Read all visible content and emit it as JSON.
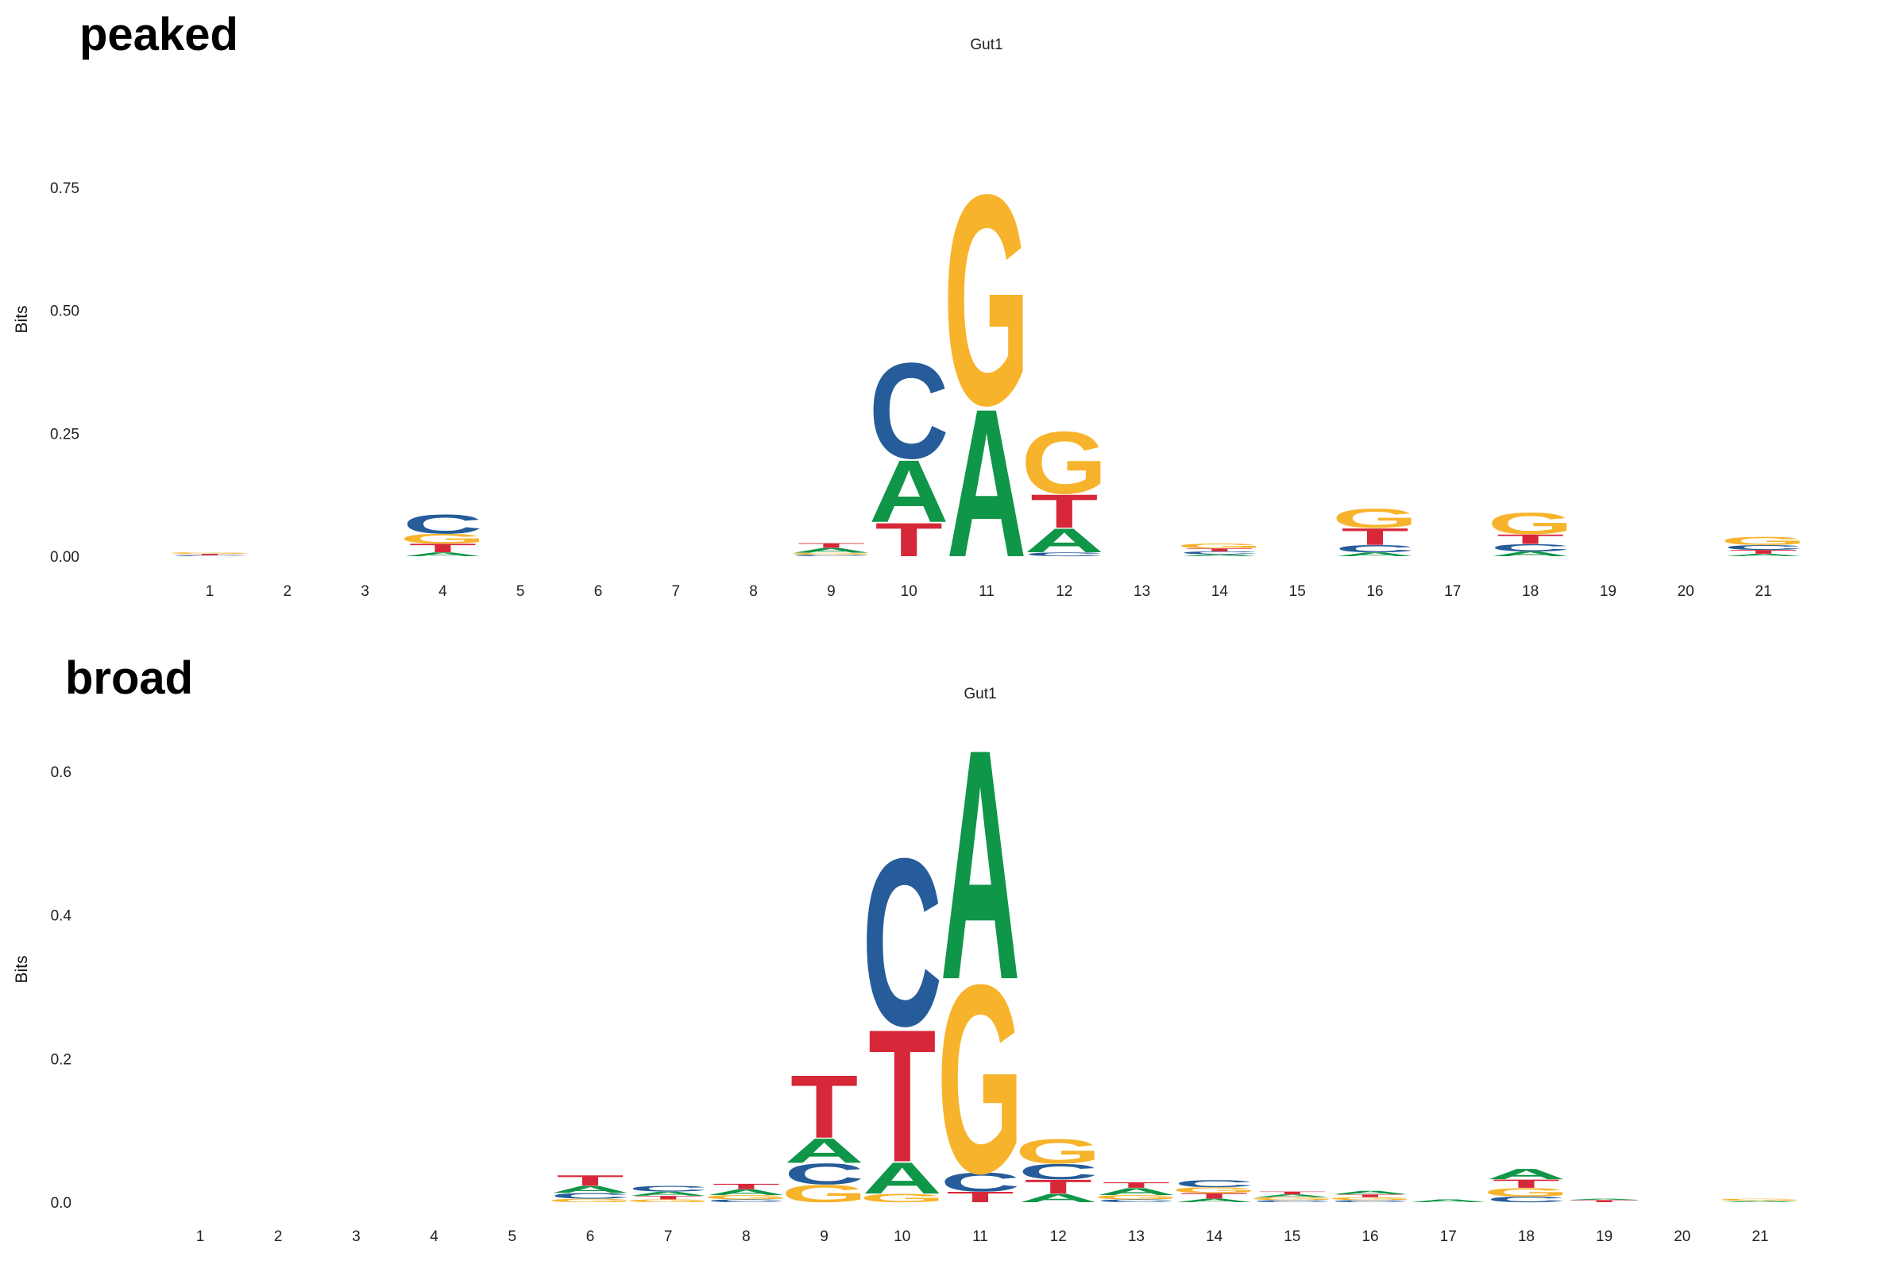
{
  "colors": {
    "A": "#109648",
    "C": "#255C99",
    "G": "#F7B32B",
    "T": "#D62839"
  },
  "panels": [
    {
      "label": "peaked"
    },
    {
      "label": "broad"
    }
  ],
  "chart_data": [
    {
      "type": "sequence-logo",
      "title": "Gut1",
      "ylabel": "Bits",
      "ylim": [
        0,
        0.75
      ],
      "yticks": [
        "0.00",
        "0.25",
        "0.50",
        "0.75"
      ],
      "ytick_values": [
        0,
        0.25,
        0.5,
        0.75
      ],
      "positions": [
        "1",
        "2",
        "3",
        "4",
        "5",
        "6",
        "7",
        "8",
        "9",
        "10",
        "11",
        "12",
        "13",
        "14",
        "15",
        "16",
        "17",
        "18",
        "19",
        "20",
        "21"
      ],
      "stacks": [
        [
          [
            "C",
            0.002
          ],
          [
            "T",
            0.003
          ],
          [
            "G",
            0.003
          ]
        ],
        [],
        [],
        [
          [
            "A",
            0.008
          ],
          [
            "T",
            0.018
          ],
          [
            "G",
            0.02
          ],
          [
            "C",
            0.04
          ]
        ],
        [],
        [],
        [],
        [],
        [
          [
            "C",
            0.003
          ],
          [
            "G",
            0.004
          ],
          [
            "A",
            0.01
          ],
          [
            "T",
            0.01
          ]
        ],
        [
          [
            "T",
            0.07
          ],
          [
            "A",
            0.13
          ],
          [
            "C",
            0.2
          ]
        ],
        [
          [
            "A",
            0.31
          ],
          [
            "G",
            0.44
          ]
        ],
        [
          [
            "C",
            0.008
          ],
          [
            "A",
            0.05
          ],
          [
            "T",
            0.07
          ],
          [
            "G",
            0.13
          ]
        ],
        [],
        [
          [
            "A",
            0.004
          ],
          [
            "C",
            0.006
          ],
          [
            "T",
            0.006
          ],
          [
            "G",
            0.01
          ]
        ],
        [],
        [
          [
            "A",
            0.008
          ],
          [
            "C",
            0.015
          ],
          [
            "T",
            0.035
          ],
          [
            "G",
            0.04
          ]
        ],
        [],
        [
          [
            "A",
            0.01
          ],
          [
            "C",
            0.015
          ],
          [
            "T",
            0.02
          ],
          [
            "G",
            0.045
          ]
        ],
        [],
        [],
        [
          [
            "A",
            0.005
          ],
          [
            "T",
            0.008
          ],
          [
            "C",
            0.01
          ],
          [
            "G",
            0.017
          ]
        ]
      ]
    },
    {
      "type": "sequence-logo",
      "title": "Gut1",
      "ylabel": "Bits",
      "ylim": [
        0,
        0.65
      ],
      "yticks": [
        "0.0",
        "0.2",
        "0.4",
        "0.6"
      ],
      "ytick_values": [
        0,
        0.2,
        0.4,
        0.6
      ],
      "positions": [
        "1",
        "2",
        "3",
        "4",
        "5",
        "6",
        "7",
        "8",
        "9",
        "10",
        "11",
        "12",
        "13",
        "14",
        "15",
        "16",
        "17",
        "18",
        "19",
        "20",
        "21"
      ],
      "stacks": [
        [],
        [],
        [],
        [],
        [],
        [
          [
            "G",
            0.005
          ],
          [
            "C",
            0.008
          ],
          [
            "A",
            0.01
          ],
          [
            "T",
            0.015
          ]
        ],
        [
          [
            "G",
            0.004
          ],
          [
            "T",
            0.005
          ],
          [
            "A",
            0.006
          ],
          [
            "C",
            0.008
          ]
        ],
        [
          [
            "C",
            0.004
          ],
          [
            "G",
            0.006
          ],
          [
            "A",
            0.008
          ],
          [
            "T",
            0.008
          ]
        ],
        [
          [
            "G",
            0.025
          ],
          [
            "C",
            0.03
          ],
          [
            "A",
            0.035
          ],
          [
            "T",
            0.09
          ]
        ],
        [
          [
            "G",
            0.012
          ],
          [
            "A",
            0.045
          ],
          [
            "T",
            0.19
          ],
          [
            "C",
            0.24
          ]
        ],
        [
          [
            "T",
            0.015
          ],
          [
            "C",
            0.027
          ],
          [
            "G",
            0.27
          ],
          [
            "A",
            0.33
          ]
        ],
        [
          [
            "A",
            0.012
          ],
          [
            "T",
            0.02
          ],
          [
            "C",
            0.022
          ],
          [
            "G",
            0.035
          ]
        ],
        [
          [
            "C",
            0.004
          ],
          [
            "G",
            0.006
          ],
          [
            "A",
            0.01
          ],
          [
            "T",
            0.008
          ]
        ],
        [
          [
            "A",
            0.005
          ],
          [
            "T",
            0.008
          ],
          [
            "G",
            0.008
          ],
          [
            "C",
            0.01
          ]
        ],
        [
          [
            "C",
            0.003
          ],
          [
            "G",
            0.004
          ],
          [
            "A",
            0.004
          ],
          [
            "T",
            0.004
          ]
        ],
        [
          [
            "C",
            0.003
          ],
          [
            "G",
            0.004
          ],
          [
            "T",
            0.004
          ],
          [
            "A",
            0.005
          ]
        ],
        [
          [
            "A",
            0.004
          ]
        ],
        [
          [
            "C",
            0.008
          ],
          [
            "G",
            0.012
          ],
          [
            "T",
            0.012
          ],
          [
            "A",
            0.015
          ]
        ],
        [
          [
            "T",
            0.003
          ],
          [
            "A",
            0.002
          ]
        ],
        [],
        [
          [
            "A",
            0.002
          ],
          [
            "G",
            0.003
          ]
        ]
      ]
    }
  ]
}
